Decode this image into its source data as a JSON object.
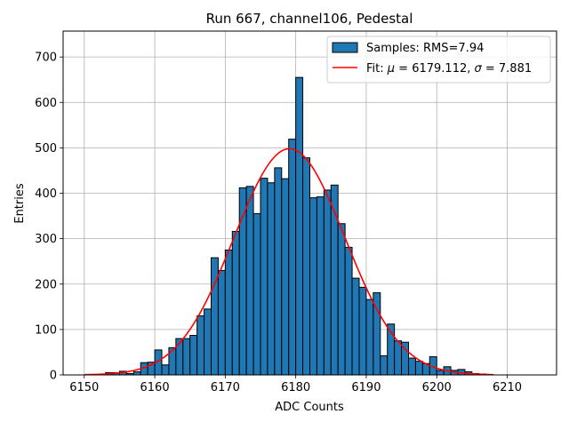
{
  "chart_data": {
    "type": "bar",
    "title": "Run 667, channel106, Pedestal",
    "xlabel": "ADC Counts",
    "ylabel": "Entries",
    "xlim": [
      6147,
      6217
    ],
    "ylim": [
      0,
      757
    ],
    "xticks": [
      6150,
      6160,
      6170,
      6180,
      6190,
      6200,
      6210
    ],
    "yticks": [
      0,
      100,
      200,
      300,
      400,
      500,
      600,
      700
    ],
    "grid": true,
    "legend_placement": "top-right",
    "colors": {
      "bar_fill": "#1f77b4",
      "bar_edge": "#000000",
      "fit_line": "#ff0000",
      "grid": "#b0b0b0"
    },
    "series": [
      {
        "name": "Samples: RMS=7.94",
        "kind": "histogram",
        "bin_width": 1,
        "x": [
          6150,
          6151,
          6152,
          6153,
          6154,
          6155,
          6156,
          6157,
          6158,
          6159,
          6160,
          6161,
          6162,
          6163,
          6164,
          6165,
          6166,
          6167,
          6168,
          6169,
          6170,
          6171,
          6172,
          6173,
          6174,
          6175,
          6176,
          6177,
          6178,
          6179,
          6180,
          6181,
          6182,
          6183,
          6184,
          6185,
          6186,
          6187,
          6188,
          6189,
          6190,
          6191,
          6192,
          6193,
          6194,
          6195,
          6196,
          6197,
          6198,
          6199,
          6200,
          6201,
          6202,
          6203,
          6204,
          6205,
          6206,
          6207
        ],
        "values": [
          0,
          0,
          0,
          5,
          5,
          8,
          3,
          7,
          27,
          28,
          55,
          22,
          60,
          80,
          80,
          87,
          130,
          145,
          258,
          230,
          275,
          316,
          412,
          415,
          355,
          433,
          423,
          456,
          432,
          519,
          655,
          478,
          390,
          392,
          407,
          418,
          333,
          281,
          213,
          193,
          166,
          181,
          42,
          112,
          75,
          72,
          37,
          30,
          25,
          40,
          10,
          18,
          10,
          12,
          7,
          3,
          2,
          1
        ]
      },
      {
        "name": "Fit: μ = 6179.112, σ = 7.881",
        "kind": "gaussian-fit",
        "mu": 6179.112,
        "sigma": 7.881,
        "amplitude": 498,
        "x_range": [
          6150,
          6208
        ]
      }
    ],
    "legend": {
      "hist_label_prefix": "Samples: RMS=7.94",
      "fit_label_prefix": "Fit: ",
      "fit_mu_symbol": "μ",
      "fit_mu_value": " = 6179.112, ",
      "fit_sigma_symbol": "σ",
      "fit_sigma_value": " = 7.881"
    }
  }
}
